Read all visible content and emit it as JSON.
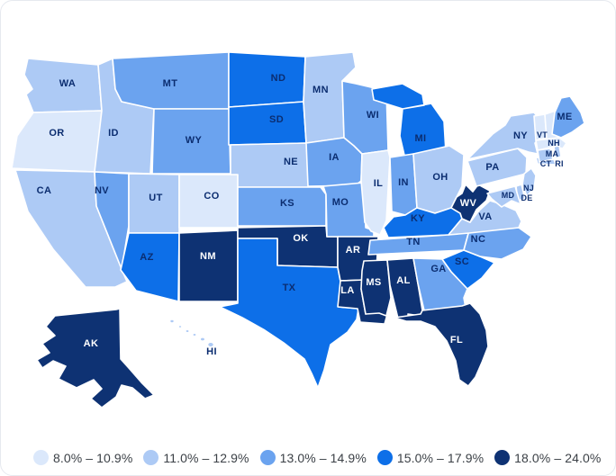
{
  "chart_data": {
    "type": "heatmap",
    "subtype": "choropleth-us-states",
    "title": "",
    "unit": "%",
    "legend_position": "bottom",
    "label_color_dark": "#0b2d70",
    "label_color_light": "#ffffff",
    "bins": [
      {
        "label": "8.0% – 10.9%",
        "color": "#dbe8fb"
      },
      {
        "label": "11.0% – 12.9%",
        "color": "#adcaf5"
      },
      {
        "label": "13.0% – 14.9%",
        "color": "#6ba3ef"
      },
      {
        "label": "15.0% – 17.9%",
        "color": "#0d6fe8"
      },
      {
        "label": "18.0% – 24.0%",
        "color": "#0e3273"
      }
    ],
    "states": [
      {
        "abbr": "WA",
        "bin": 1
      },
      {
        "abbr": "OR",
        "bin": 0
      },
      {
        "abbr": "CA",
        "bin": 1
      },
      {
        "abbr": "ID",
        "bin": 1
      },
      {
        "abbr": "NV",
        "bin": 2
      },
      {
        "abbr": "UT",
        "bin": 1
      },
      {
        "abbr": "AZ",
        "bin": 3
      },
      {
        "abbr": "MT",
        "bin": 2
      },
      {
        "abbr": "WY",
        "bin": 2
      },
      {
        "abbr": "CO",
        "bin": 0
      },
      {
        "abbr": "NM",
        "bin": 4
      },
      {
        "abbr": "ND",
        "bin": 3
      },
      {
        "abbr": "SD",
        "bin": 3
      },
      {
        "abbr": "NE",
        "bin": 1
      },
      {
        "abbr": "KS",
        "bin": 2
      },
      {
        "abbr": "OK",
        "bin": 4
      },
      {
        "abbr": "TX",
        "bin": 3
      },
      {
        "abbr": "MN",
        "bin": 1
      },
      {
        "abbr": "IA",
        "bin": 2
      },
      {
        "abbr": "MO",
        "bin": 2
      },
      {
        "abbr": "AR",
        "bin": 4
      },
      {
        "abbr": "LA",
        "bin": 4
      },
      {
        "abbr": "WI",
        "bin": 2
      },
      {
        "abbr": "IL",
        "bin": 0
      },
      {
        "abbr": "MI",
        "bin": 3
      },
      {
        "abbr": "IN",
        "bin": 2
      },
      {
        "abbr": "OH",
        "bin": 1
      },
      {
        "abbr": "KY",
        "bin": 3
      },
      {
        "abbr": "TN",
        "bin": 2
      },
      {
        "abbr": "MS",
        "bin": 4
      },
      {
        "abbr": "AL",
        "bin": 4
      },
      {
        "abbr": "GA",
        "bin": 2
      },
      {
        "abbr": "FL",
        "bin": 4
      },
      {
        "abbr": "SC",
        "bin": 3
      },
      {
        "abbr": "NC",
        "bin": 2
      },
      {
        "abbr": "VA",
        "bin": 1
      },
      {
        "abbr": "WV",
        "bin": 4
      },
      {
        "abbr": "PA",
        "bin": 1
      },
      {
        "abbr": "NY",
        "bin": 1
      },
      {
        "abbr": "NJ",
        "bin": 1
      },
      {
        "abbr": "DE",
        "bin": 1
      },
      {
        "abbr": "MD",
        "bin": 1
      },
      {
        "abbr": "VT",
        "bin": 0
      },
      {
        "abbr": "NH",
        "bin": 0
      },
      {
        "abbr": "ME",
        "bin": 2
      },
      {
        "abbr": "MA",
        "bin": 0
      },
      {
        "abbr": "CT",
        "bin": 1
      },
      {
        "abbr": "RI",
        "bin": 1
      },
      {
        "abbr": "AK",
        "bin": 4
      },
      {
        "abbr": "HI",
        "bin": 1
      }
    ]
  }
}
